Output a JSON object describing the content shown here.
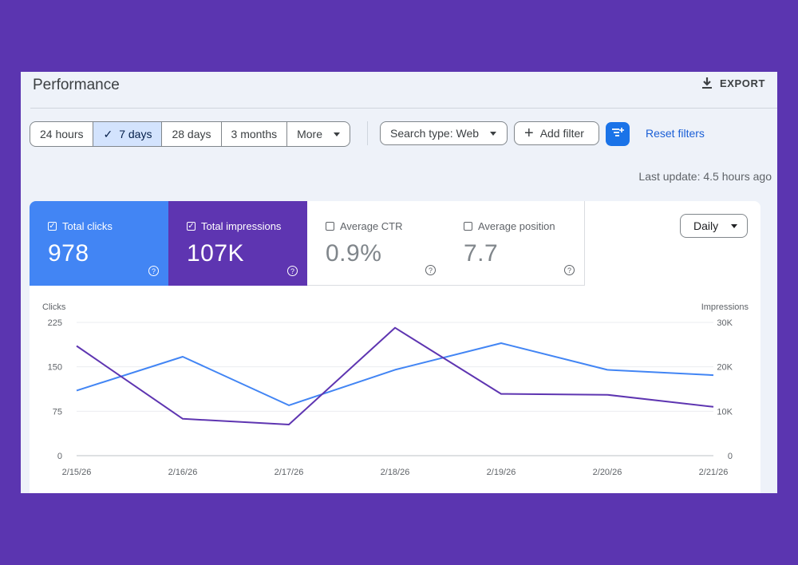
{
  "header": {
    "title": "Performance",
    "export_label": "EXPORT"
  },
  "date_range": {
    "options": [
      {
        "label": "24 hours",
        "active": false
      },
      {
        "label": "7 days",
        "active": true
      },
      {
        "label": "28 days",
        "active": false
      },
      {
        "label": "3 months",
        "active": false
      }
    ],
    "more_label": "More"
  },
  "filters": {
    "search_type": "Search type: Web",
    "add_filter": "Add filter",
    "reset": "Reset filters"
  },
  "last_update": "Last update: 4.5 hours ago",
  "metrics": {
    "clicks": {
      "label": "Total clicks",
      "value": "978",
      "selected": true,
      "color": "#4285f4"
    },
    "impressions": {
      "label": "Total impressions",
      "value": "107K",
      "selected": true,
      "color": "#5e35b1"
    },
    "ctr": {
      "label": "Average CTR",
      "value": "0.9%",
      "selected": false
    },
    "position": {
      "label": "Average position",
      "value": "7.7",
      "selected": false
    }
  },
  "granularity": "Daily",
  "help_glyph": "?",
  "chart_data": {
    "type": "line",
    "x": [
      "2/15/26",
      "2/16/26",
      "2/17/26",
      "2/18/26",
      "2/19/26",
      "2/20/26",
      "2/21/26"
    ],
    "left_axis": {
      "label": "Clicks",
      "ticks": [
        "0",
        "75",
        "150",
        "225"
      ],
      "ylim": [
        0,
        225
      ]
    },
    "right_axis": {
      "label": "Impressions",
      "ticks": [
        "0",
        "10K",
        "20K",
        "30K"
      ],
      "ylim": [
        0,
        30000
      ]
    },
    "series": [
      {
        "name": "Total clicks",
        "axis": "left",
        "color": "#4285f4",
        "values": [
          110,
          167,
          85,
          145,
          190,
          145,
          136
        ]
      },
      {
        "name": "Total impressions",
        "axis": "right",
        "color": "#5e35b1",
        "values": [
          24700,
          8300,
          7000,
          28800,
          13900,
          13700,
          11000
        ]
      }
    ],
    "grid": true
  }
}
